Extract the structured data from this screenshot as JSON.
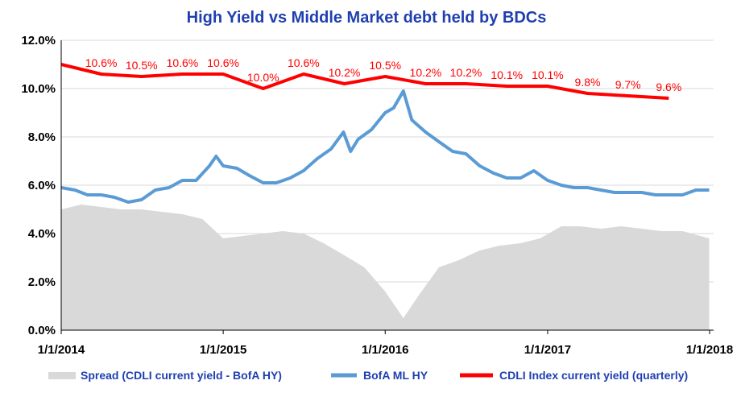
{
  "chart_data": {
    "type": "line",
    "title": "High Yield  vs  Middle Market debt held by BDCs",
    "y_ticks": [
      "0.0%",
      "2.0%",
      "4.0%",
      "6.0%",
      "8.0%",
      "10.0%",
      "12.0%"
    ],
    "ylim": [
      0,
      12
    ],
    "x_ticks": [
      "1/1/2014",
      "1/1/2015",
      "1/1/2016",
      "1/1/2017",
      "1/1/2018"
    ],
    "xlim": [
      "2014-01-01",
      "2018-01-10"
    ],
    "grid": "horizontal",
    "legend_position": "bottom",
    "series": [
      {
        "name": "Spread (CDLI current yield - BofA HY)",
        "kind": "area",
        "color": "#d9d9d9",
        "x": [
          "2014-01-01",
          "2014-02-15",
          "2014-04-01",
          "2014-05-15",
          "2014-07-01",
          "2014-08-15",
          "2014-10-01",
          "2014-11-15",
          "2015-01-01",
          "2015-02-15",
          "2015-04-01",
          "2015-05-15",
          "2015-07-01",
          "2015-08-15",
          "2015-10-01",
          "2015-11-15",
          "2016-01-01",
          "2016-02-11",
          "2016-03-15",
          "2016-05-01",
          "2016-06-15",
          "2016-08-01",
          "2016-09-15",
          "2016-11-01",
          "2016-12-15",
          "2017-02-01",
          "2017-03-15",
          "2017-05-01",
          "2017-06-15",
          "2017-08-01",
          "2017-09-15",
          "2017-11-01",
          "2017-12-31"
        ],
        "values": [
          5.0,
          5.2,
          5.1,
          5.0,
          5.0,
          4.9,
          4.8,
          4.6,
          3.8,
          3.9,
          4.0,
          4.1,
          4.0,
          3.6,
          3.1,
          2.6,
          1.6,
          0.5,
          1.4,
          2.6,
          2.9,
          3.3,
          3.5,
          3.6,
          3.8,
          4.3,
          4.3,
          4.2,
          4.3,
          4.2,
          4.1,
          4.1,
          3.8
        ]
      },
      {
        "name": "BofA ML HY",
        "kind": "line",
        "color": "#5b9bd5",
        "x": [
          "2014-01-01",
          "2014-02-01",
          "2014-03-01",
          "2014-04-01",
          "2014-05-01",
          "2014-06-01",
          "2014-07-01",
          "2014-08-01",
          "2014-09-01",
          "2014-10-01",
          "2014-11-01",
          "2014-12-01",
          "2014-12-16",
          "2015-01-01",
          "2015-02-01",
          "2015-03-01",
          "2015-04-01",
          "2015-05-01",
          "2015-06-01",
          "2015-07-01",
          "2015-08-01",
          "2015-09-01",
          "2015-09-29",
          "2015-10-15",
          "2015-11-01",
          "2015-12-01",
          "2016-01-01",
          "2016-01-20",
          "2016-02-11",
          "2016-03-01",
          "2016-04-01",
          "2016-05-01",
          "2016-06-01",
          "2016-07-01",
          "2016-08-01",
          "2016-09-01",
          "2016-10-01",
          "2016-11-01",
          "2016-12-01",
          "2017-01-01",
          "2017-02-01",
          "2017-03-01",
          "2017-04-01",
          "2017-05-01",
          "2017-06-01",
          "2017-07-01",
          "2017-08-01",
          "2017-09-01",
          "2017-10-01",
          "2017-11-01",
          "2017-12-01",
          "2017-12-31"
        ],
        "values": [
          5.9,
          5.8,
          5.6,
          5.6,
          5.5,
          5.3,
          5.4,
          5.8,
          5.9,
          6.2,
          6.2,
          6.8,
          7.2,
          6.8,
          6.7,
          6.4,
          6.1,
          6.1,
          6.3,
          6.6,
          7.1,
          7.5,
          8.2,
          7.4,
          7.9,
          8.3,
          9.0,
          9.2,
          9.9,
          8.7,
          8.2,
          7.8,
          7.4,
          7.3,
          6.8,
          6.5,
          6.3,
          6.3,
          6.6,
          6.2,
          6.0,
          5.9,
          5.9,
          5.8,
          5.7,
          5.7,
          5.7,
          5.6,
          5.6,
          5.6,
          5.8,
          5.8
        ]
      },
      {
        "name": "CDLI Index current yield (quarterly)",
        "kind": "line",
        "color": "#ff0000",
        "x": [
          "2014-01-01",
          "2014-04-01",
          "2014-07-01",
          "2014-10-01",
          "2015-01-01",
          "2015-04-01",
          "2015-07-01",
          "2015-10-01",
          "2016-01-01",
          "2016-04-01",
          "2016-07-01",
          "2016-10-01",
          "2017-01-01",
          "2017-04-01",
          "2017-07-01",
          "2017-10-01"
        ],
        "values": [
          11.0,
          10.6,
          10.5,
          10.6,
          10.6,
          10.0,
          10.6,
          10.2,
          10.5,
          10.2,
          10.2,
          10.1,
          10.1,
          9.8,
          9.7,
          9.6
        ],
        "labels": [
          "",
          "10.6%",
          "10.5%",
          "10.6%",
          "10.6%",
          "10.0%",
          "10.6%",
          "10.2%",
          "10.5%",
          "10.2%",
          "10.2%",
          "10.1%",
          "10.1%",
          "9.8%",
          "9.7%",
          "9.6%"
        ]
      }
    ]
  }
}
